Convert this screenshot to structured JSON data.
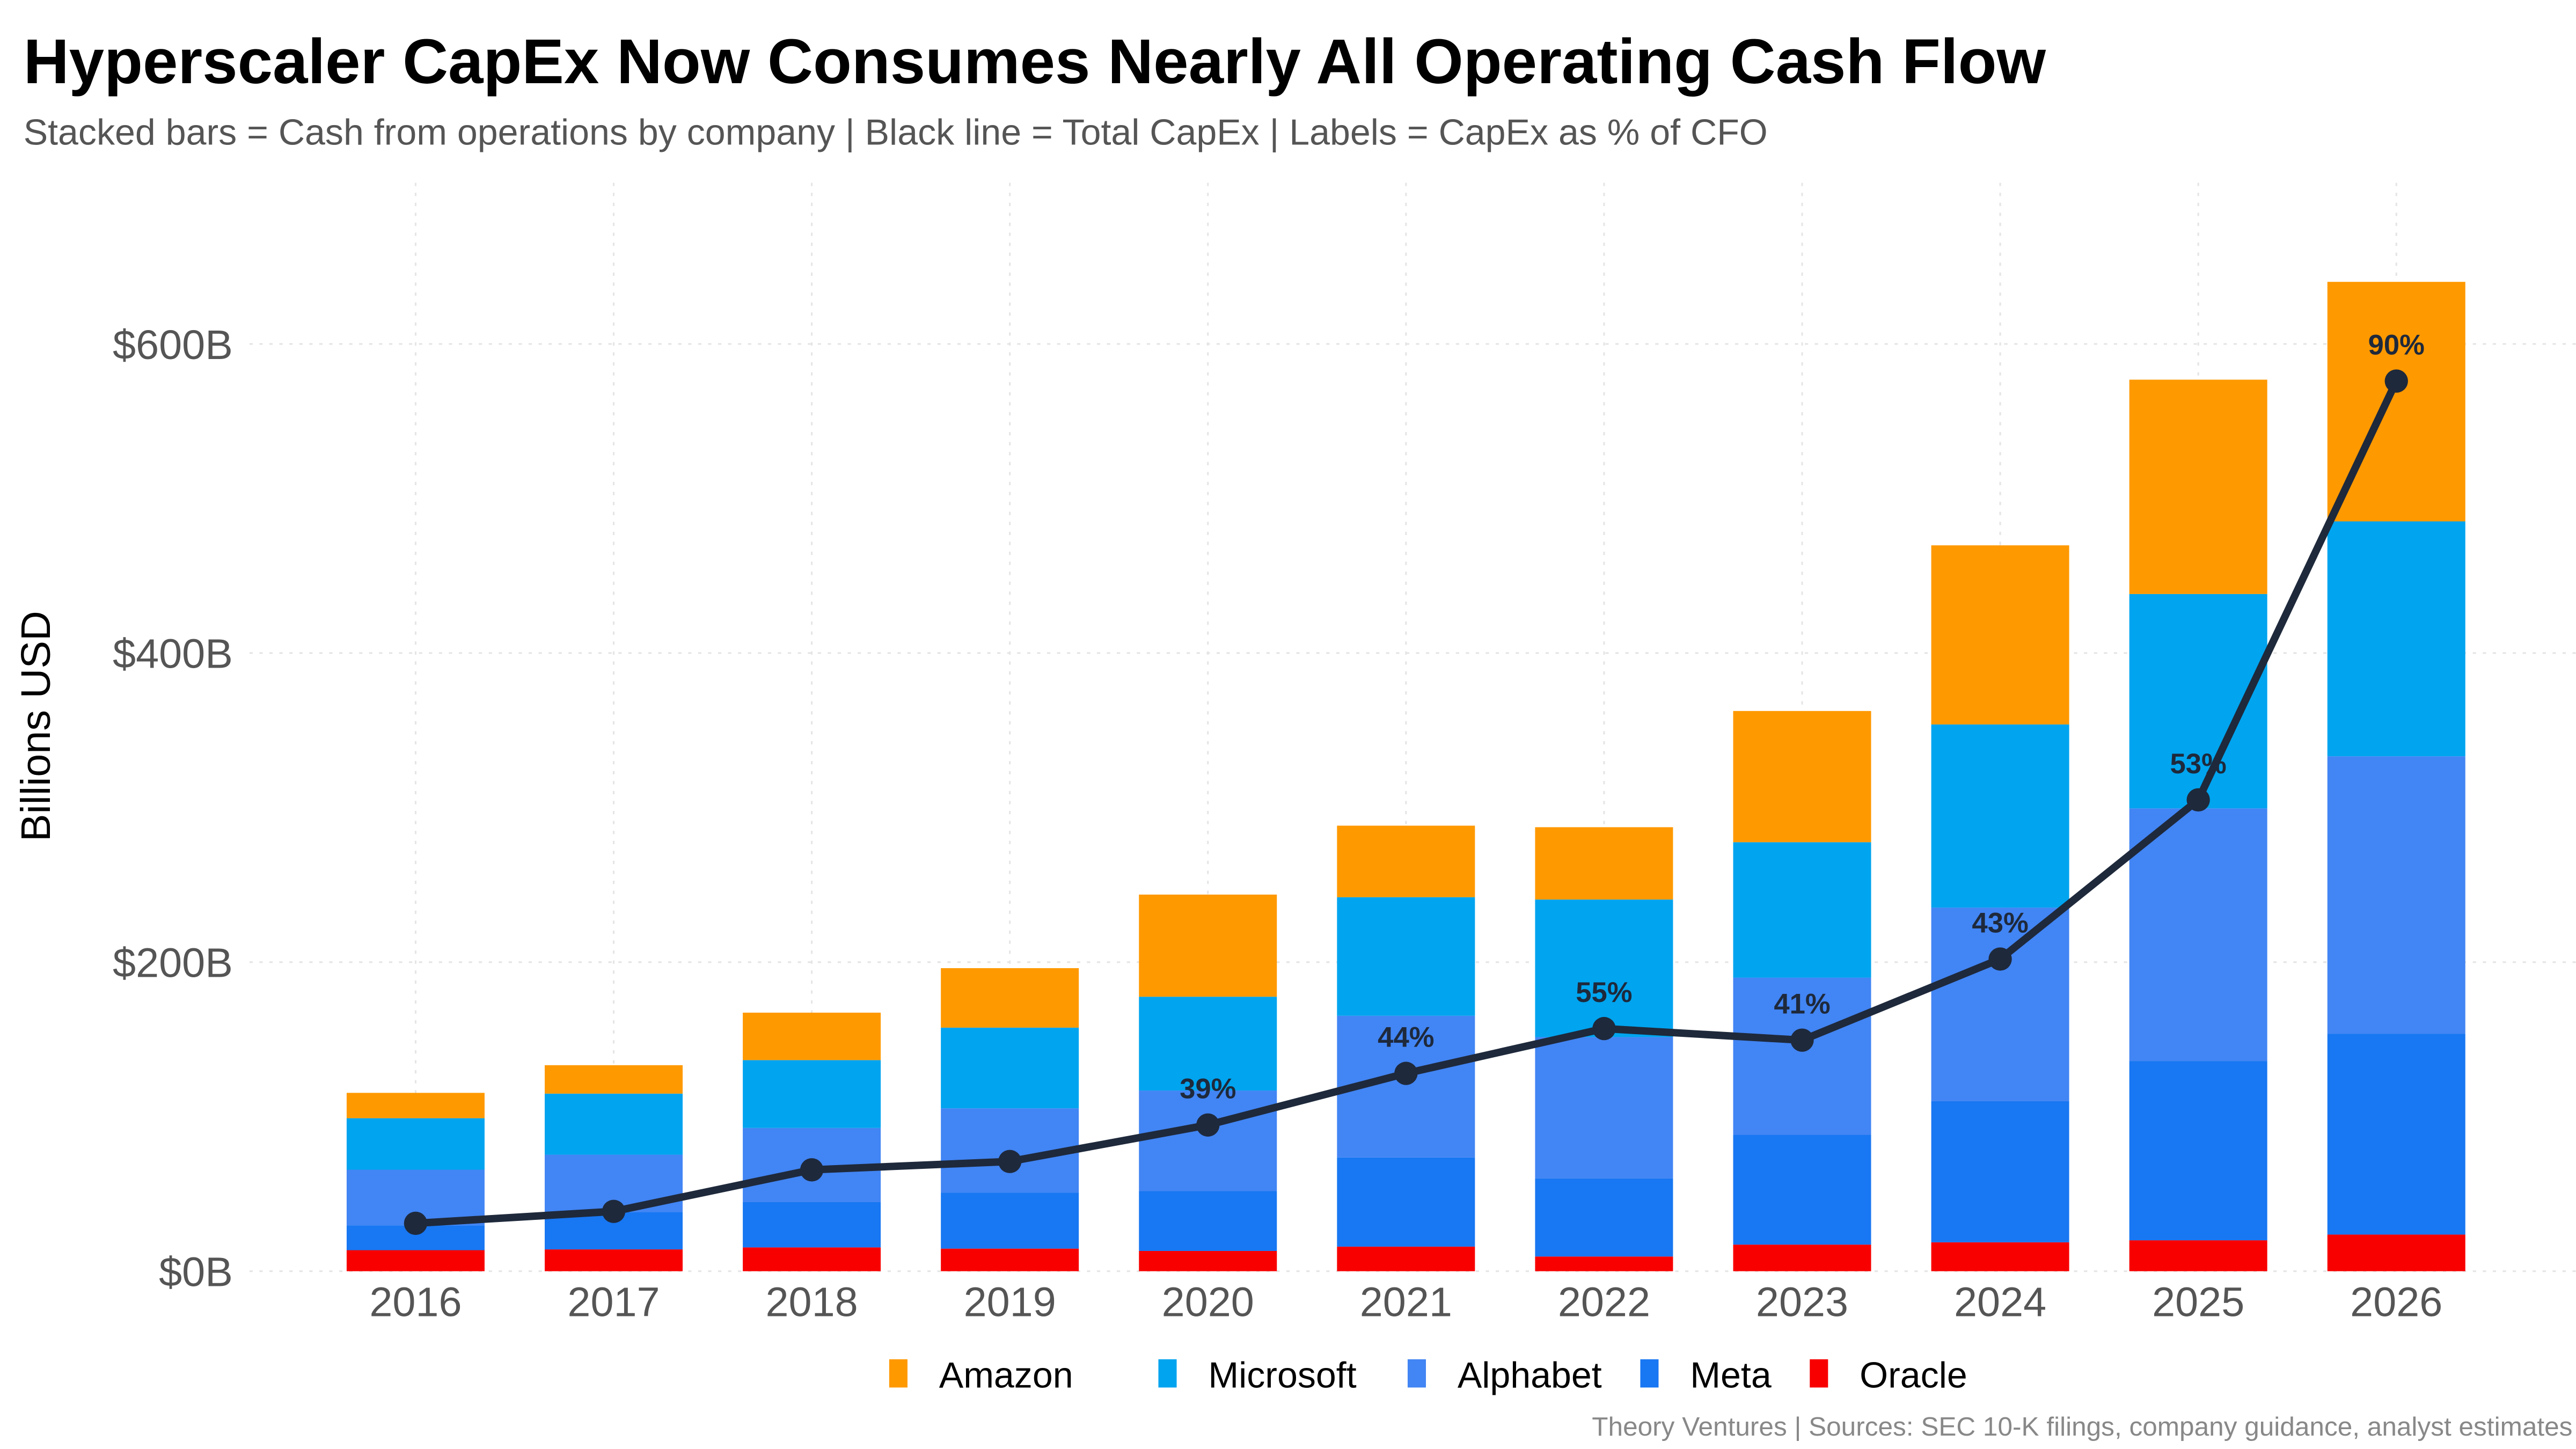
{
  "chart_data": {
    "type": "bar",
    "title": "Hyperscaler CapEx Now Consumes Nearly All Operating Cash Flow",
    "subtitle": "Stacked bars = Cash from operations by company | Black line = Total CapEx | Labels = CapEx as % of CFO",
    "ylabel": "Billions USD",
    "xlabel": "",
    "ylim": [
      0,
      700
    ],
    "yticks": [
      0,
      200,
      400,
      600
    ],
    "ytick_labels": [
      "$0B",
      "$200B",
      "$400B",
      "$600B"
    ],
    "grid": true,
    "legend_position": "bottom",
    "stacked": true,
    "categories": [
      "2016",
      "2017",
      "2018",
      "2019",
      "2020",
      "2021",
      "2022",
      "2023",
      "2024",
      "2025",
      "2026"
    ],
    "series": [
      {
        "name": "Oracle",
        "color": "#F80000",
        "values": [
          13.6,
          14.1,
          15.4,
          14.6,
          13.1,
          15.9,
          9.5,
          17.2,
          18.7,
          20,
          23.7
        ]
      },
      {
        "name": "Meta",
        "color": "#1877F2",
        "values": [
          16.1,
          24.2,
          29.3,
          36.3,
          38.7,
          57.7,
          50.5,
          71.1,
          91.3,
          116,
          130
        ]
      },
      {
        "name": "Alphabet",
        "color": "#4285F4",
        "values": [
          36,
          37.1,
          48,
          54.5,
          65.1,
          91.7,
          91.5,
          101.7,
          125.3,
          163.5,
          179.5
        ]
      },
      {
        "name": "Microsoft",
        "color": "#00A4EF",
        "values": [
          33.3,
          39.5,
          43.9,
          52.2,
          60.7,
          76.7,
          89,
          87.6,
          118.5,
          138.7,
          152
        ]
      },
      {
        "name": "Amazon",
        "color": "#FF9900",
        "values": [
          16.4,
          18.4,
          30.7,
          38.5,
          66.1,
          46.3,
          46.8,
          84.9,
          115.9,
          138.7,
          155
        ]
      }
    ],
    "legend_order": [
      "Amazon",
      "Microsoft",
      "Alphabet",
      "Meta",
      "Oracle"
    ],
    "line": {
      "name": "Total CapEx",
      "color": "#1E293B",
      "values": [
        31,
        38.7,
        65.6,
        71,
        94.6,
        128,
        157,
        149.5,
        202,
        305,
        576
      ],
      "labels": [
        "",
        "",
        "",
        "",
        "39%",
        "44%",
        "55%",
        "41%",
        "43%",
        "53%",
        "90%"
      ]
    },
    "caption": "Theory Ventures | Sources: SEC 10-K filings, company guidance, analyst estimates"
  }
}
